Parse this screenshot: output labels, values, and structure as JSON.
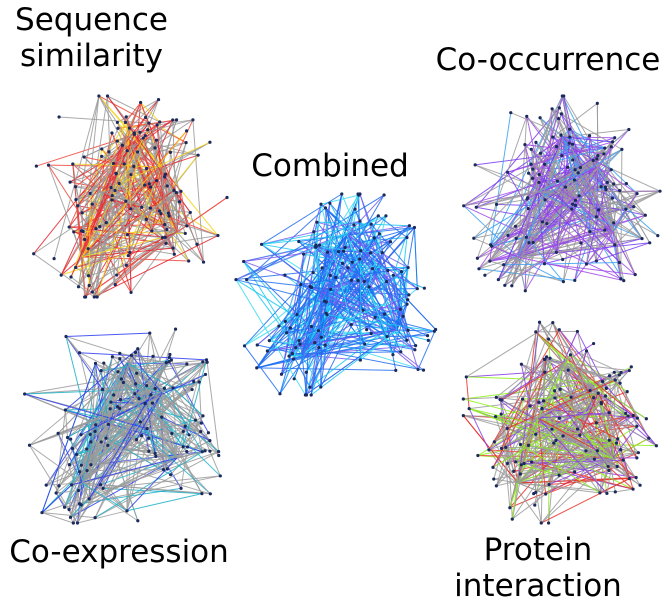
{
  "labels": {
    "sequence_similarity": [
      "Sequence",
      "similarity"
    ],
    "combined": "Combined",
    "co_occurrence": "Co-occurrence",
    "co_expression": "Co-expression",
    "protein_interaction": [
      "Protein",
      "interaction"
    ]
  },
  "networks": [
    {
      "id": "sequence-similarity-network",
      "colors": [
        "#9a9a9a",
        "#e8212a",
        "#f0453a",
        "#f5d21a"
      ]
    },
    {
      "id": "co-occurrence-network",
      "colors": [
        "#9a9a9a",
        "#7a3cf0",
        "#a24ae8",
        "#3aa0f0"
      ]
    },
    {
      "id": "combined-network",
      "colors": [
        "#1e6cf0",
        "#18c8f0",
        "#7a5cf0",
        "#3cdcf0"
      ]
    },
    {
      "id": "co-expression-network",
      "colors": [
        "#9a9a9a",
        "#2d3cf0",
        "#1ab0c8",
        "#a0a0a0"
      ]
    },
    {
      "id": "protein-interaction-network",
      "colors": [
        "#9a9a9a",
        "#e8312a",
        "#8ef01a",
        "#8a3ce8"
      ]
    }
  ]
}
